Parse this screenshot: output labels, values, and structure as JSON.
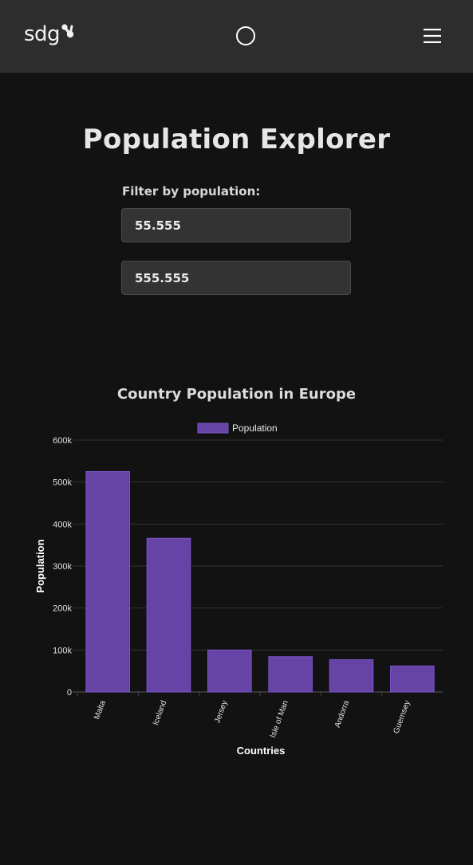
{
  "header": {
    "logo_text": "sdg",
    "theme_toggle_icon": "circle-icon",
    "menu_icon": "hamburger-menu-icon"
  },
  "main": {
    "title": "Population Explorer",
    "filter_label": "Filter by population:",
    "min_value": "55.555",
    "max_value": "555.555"
  },
  "chart_data": {
    "type": "bar",
    "title": "Country Population in Europe",
    "xlabel": "Countries",
    "ylabel": "Population",
    "legend": [
      "Population"
    ],
    "legend_position": "top",
    "categories": [
      "Malta",
      "Iceland",
      "Jersey",
      "Isle of Man",
      "Andorra",
      "Guernsey"
    ],
    "series": [
      {
        "name": "Population",
        "values": [
          525000,
          366000,
          100000,
          84000,
          77000,
          62000
        ]
      }
    ],
    "ylim": [
      0,
      600000
    ],
    "yticks": [
      0,
      100000,
      200000,
      300000,
      400000,
      500000,
      600000
    ],
    "ytick_labels": [
      "0",
      "100k",
      "200k",
      "300k",
      "400k",
      "500k",
      "600k"
    ],
    "grid": true,
    "colors": {
      "bar_fill": "#6644a6",
      "bar_border": "#7a55c8"
    }
  }
}
